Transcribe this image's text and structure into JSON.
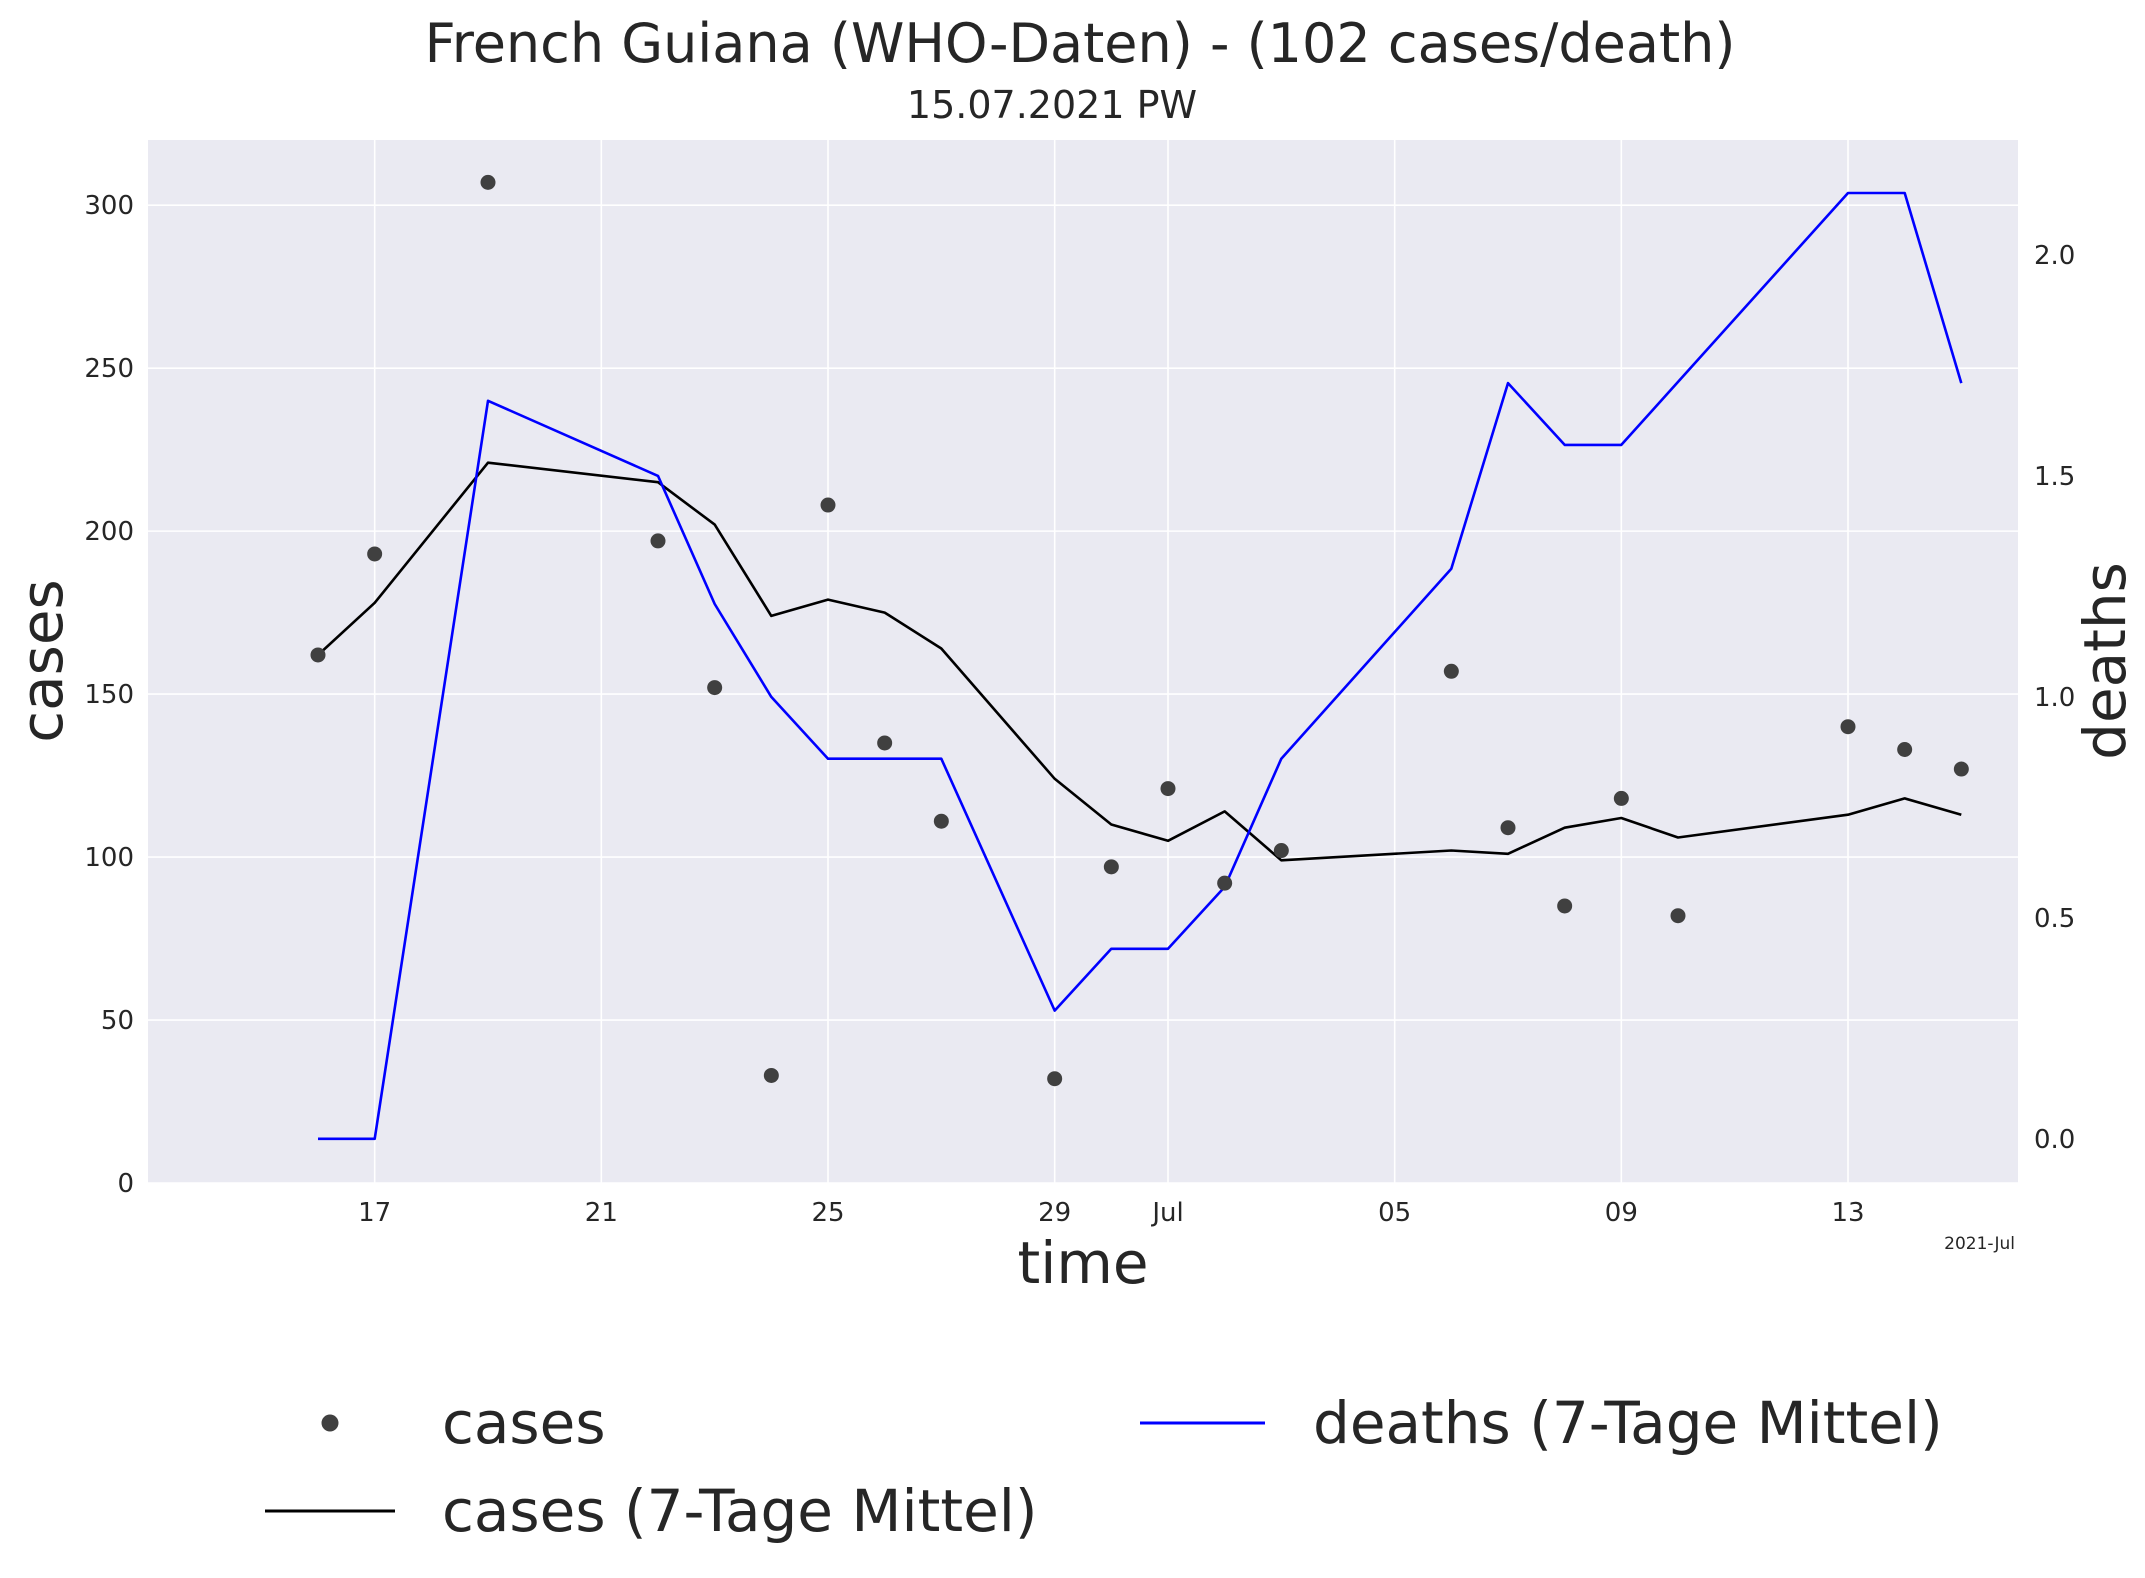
{
  "chart_data": {
    "type": "line",
    "title": "French Guiana (WHO-Daten) - (102 cases/death)",
    "subtitle": "15.07.2021 PW",
    "xlabel": "time",
    "ylabel": "cases",
    "y2label": "deaths",
    "x_offset_label": "2021-Jul",
    "x_tick_labels": [
      "17",
      "21",
      "25",
      "29",
      "Jul",
      "05",
      "09",
      "13"
    ],
    "x_tick_dates": [
      "2021-06-17",
      "2021-06-21",
      "2021-06-25",
      "2021-06-29",
      "2021-07-01",
      "2021-07-05",
      "2021-07-09",
      "2021-07-13"
    ],
    "xlim": [
      "2021-06-13",
      "2021-07-16"
    ],
    "ylim": [
      0,
      320
    ],
    "y_ticks": [
      0,
      50,
      100,
      150,
      200,
      250,
      300
    ],
    "y2lim": [
      -0.1,
      2.26
    ],
    "y2_ticks": [
      0.0,
      0.5,
      1.0,
      1.5,
      2.0
    ],
    "grid": true,
    "legend_position": "below plot",
    "colors": {
      "background": "#eaeaf2",
      "grid": "#ffffff",
      "cases_points": "#404040",
      "cases_avg": "#000000",
      "deaths_avg": "#0000ff",
      "y2label": "#0000ff"
    },
    "series": [
      {
        "name": "cases",
        "kind": "scatter",
        "axis": "left",
        "x": [
          "2021-06-16",
          "2021-06-17",
          "2021-06-19",
          "2021-06-22",
          "2021-06-23",
          "2021-06-24",
          "2021-06-25",
          "2021-06-26",
          "2021-06-27",
          "2021-06-29",
          "2021-06-30",
          "2021-07-01",
          "2021-07-02",
          "2021-07-03",
          "2021-07-06",
          "2021-07-07",
          "2021-07-08",
          "2021-07-09",
          "2021-07-10",
          "2021-07-13",
          "2021-07-14",
          "2021-07-15"
        ],
        "y": [
          162,
          193,
          307,
          197,
          152,
          33,
          208,
          135,
          111,
          32,
          97,
          121,
          92,
          102,
          157,
          109,
          85,
          118,
          82,
          140,
          133,
          127
        ]
      },
      {
        "name": "cases (7-Tage Mittel)",
        "kind": "line",
        "axis": "left",
        "x": [
          "2021-06-16",
          "2021-06-17",
          "2021-06-19",
          "2021-06-22",
          "2021-06-23",
          "2021-06-24",
          "2021-06-25",
          "2021-06-26",
          "2021-06-27",
          "2021-06-29",
          "2021-06-30",
          "2021-07-01",
          "2021-07-02",
          "2021-07-03",
          "2021-07-06",
          "2021-07-07",
          "2021-07-08",
          "2021-07-09",
          "2021-07-10",
          "2021-07-13",
          "2021-07-14",
          "2021-07-15"
        ],
        "y": [
          162,
          178,
          221,
          215,
          202,
          174,
          179,
          175,
          164,
          124,
          110,
          105,
          114,
          99,
          102,
          101,
          109,
          112,
          106,
          113,
          118,
          113
        ]
      },
      {
        "name": "deaths (7-Tage Mittel)",
        "kind": "line",
        "axis": "right",
        "x": [
          "2021-06-16",
          "2021-06-17",
          "2021-06-19",
          "2021-06-22",
          "2021-06-23",
          "2021-06-24",
          "2021-06-25",
          "2021-06-26",
          "2021-06-27",
          "2021-06-29",
          "2021-06-30",
          "2021-07-01",
          "2021-07-02",
          "2021-07-03",
          "2021-07-06",
          "2021-07-07",
          "2021-07-08",
          "2021-07-09",
          "2021-07-13",
          "2021-07-14",
          "2021-07-15"
        ],
        "y": [
          0.0,
          0.0,
          1.67,
          1.5,
          1.21,
          1.0,
          0.86,
          0.86,
          0.86,
          0.29,
          0.43,
          0.43,
          0.57,
          0.86,
          1.29,
          1.71,
          1.57,
          1.57,
          2.14,
          2.14,
          1.71
        ]
      }
    ],
    "legend": [
      "cases",
      "cases (7-Tage Mittel)",
      "deaths (7-Tage Mittel)"
    ]
  }
}
